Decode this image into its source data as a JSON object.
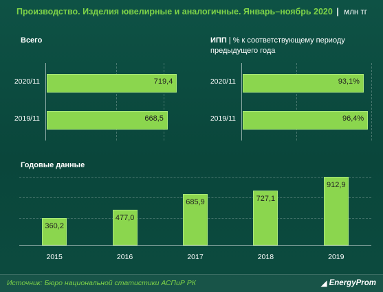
{
  "header": {
    "title": "Производство. Изделия ювелирные и аналогичные. Январь–ноябрь 2020",
    "separator": "|",
    "unit": "млн тг"
  },
  "panels": {
    "total_title": "Всего",
    "ipp_title": "ИПП",
    "ipp_subtitle_1": "| % к соответствующему периоду",
    "ipp_subtitle_2": "предыдущего года",
    "annual_title": "Годовые данные"
  },
  "footer": {
    "source": "Источник: Бюро национальной  статистики АСПиР РК",
    "brand": "EnergyProm"
  },
  "chart_data": [
    {
      "type": "bar",
      "orientation": "horizontal",
      "title": "Всего",
      "categories": [
        "2020/11",
        "2019/11"
      ],
      "values": [
        719.4,
        668.5
      ],
      "value_labels": [
        "719,4",
        "668,5"
      ],
      "xlim": [
        0,
        760
      ],
      "color": "#8bd64e"
    },
    {
      "type": "bar",
      "orientation": "horizontal",
      "title": "ИПП",
      "categories": [
        "2020/11",
        "2019/11"
      ],
      "values": [
        93.1,
        96.4
      ],
      "value_labels": [
        "93,1%",
        "96,4%"
      ],
      "xlim": [
        0,
        100
      ],
      "color": "#8bd64e"
    },
    {
      "type": "bar",
      "orientation": "vertical",
      "title": "Годовые данные",
      "categories": [
        "2015",
        "2016",
        "2017",
        "2018",
        "2019"
      ],
      "values": [
        360.2,
        477.0,
        685.9,
        727.1,
        912.9
      ],
      "value_labels": [
        "360,2",
        "477,0",
        "685,9",
        "727,1",
        "912,9"
      ],
      "ylim": [
        0,
        1000
      ],
      "grid": true,
      "color": "#8bd64e"
    }
  ]
}
